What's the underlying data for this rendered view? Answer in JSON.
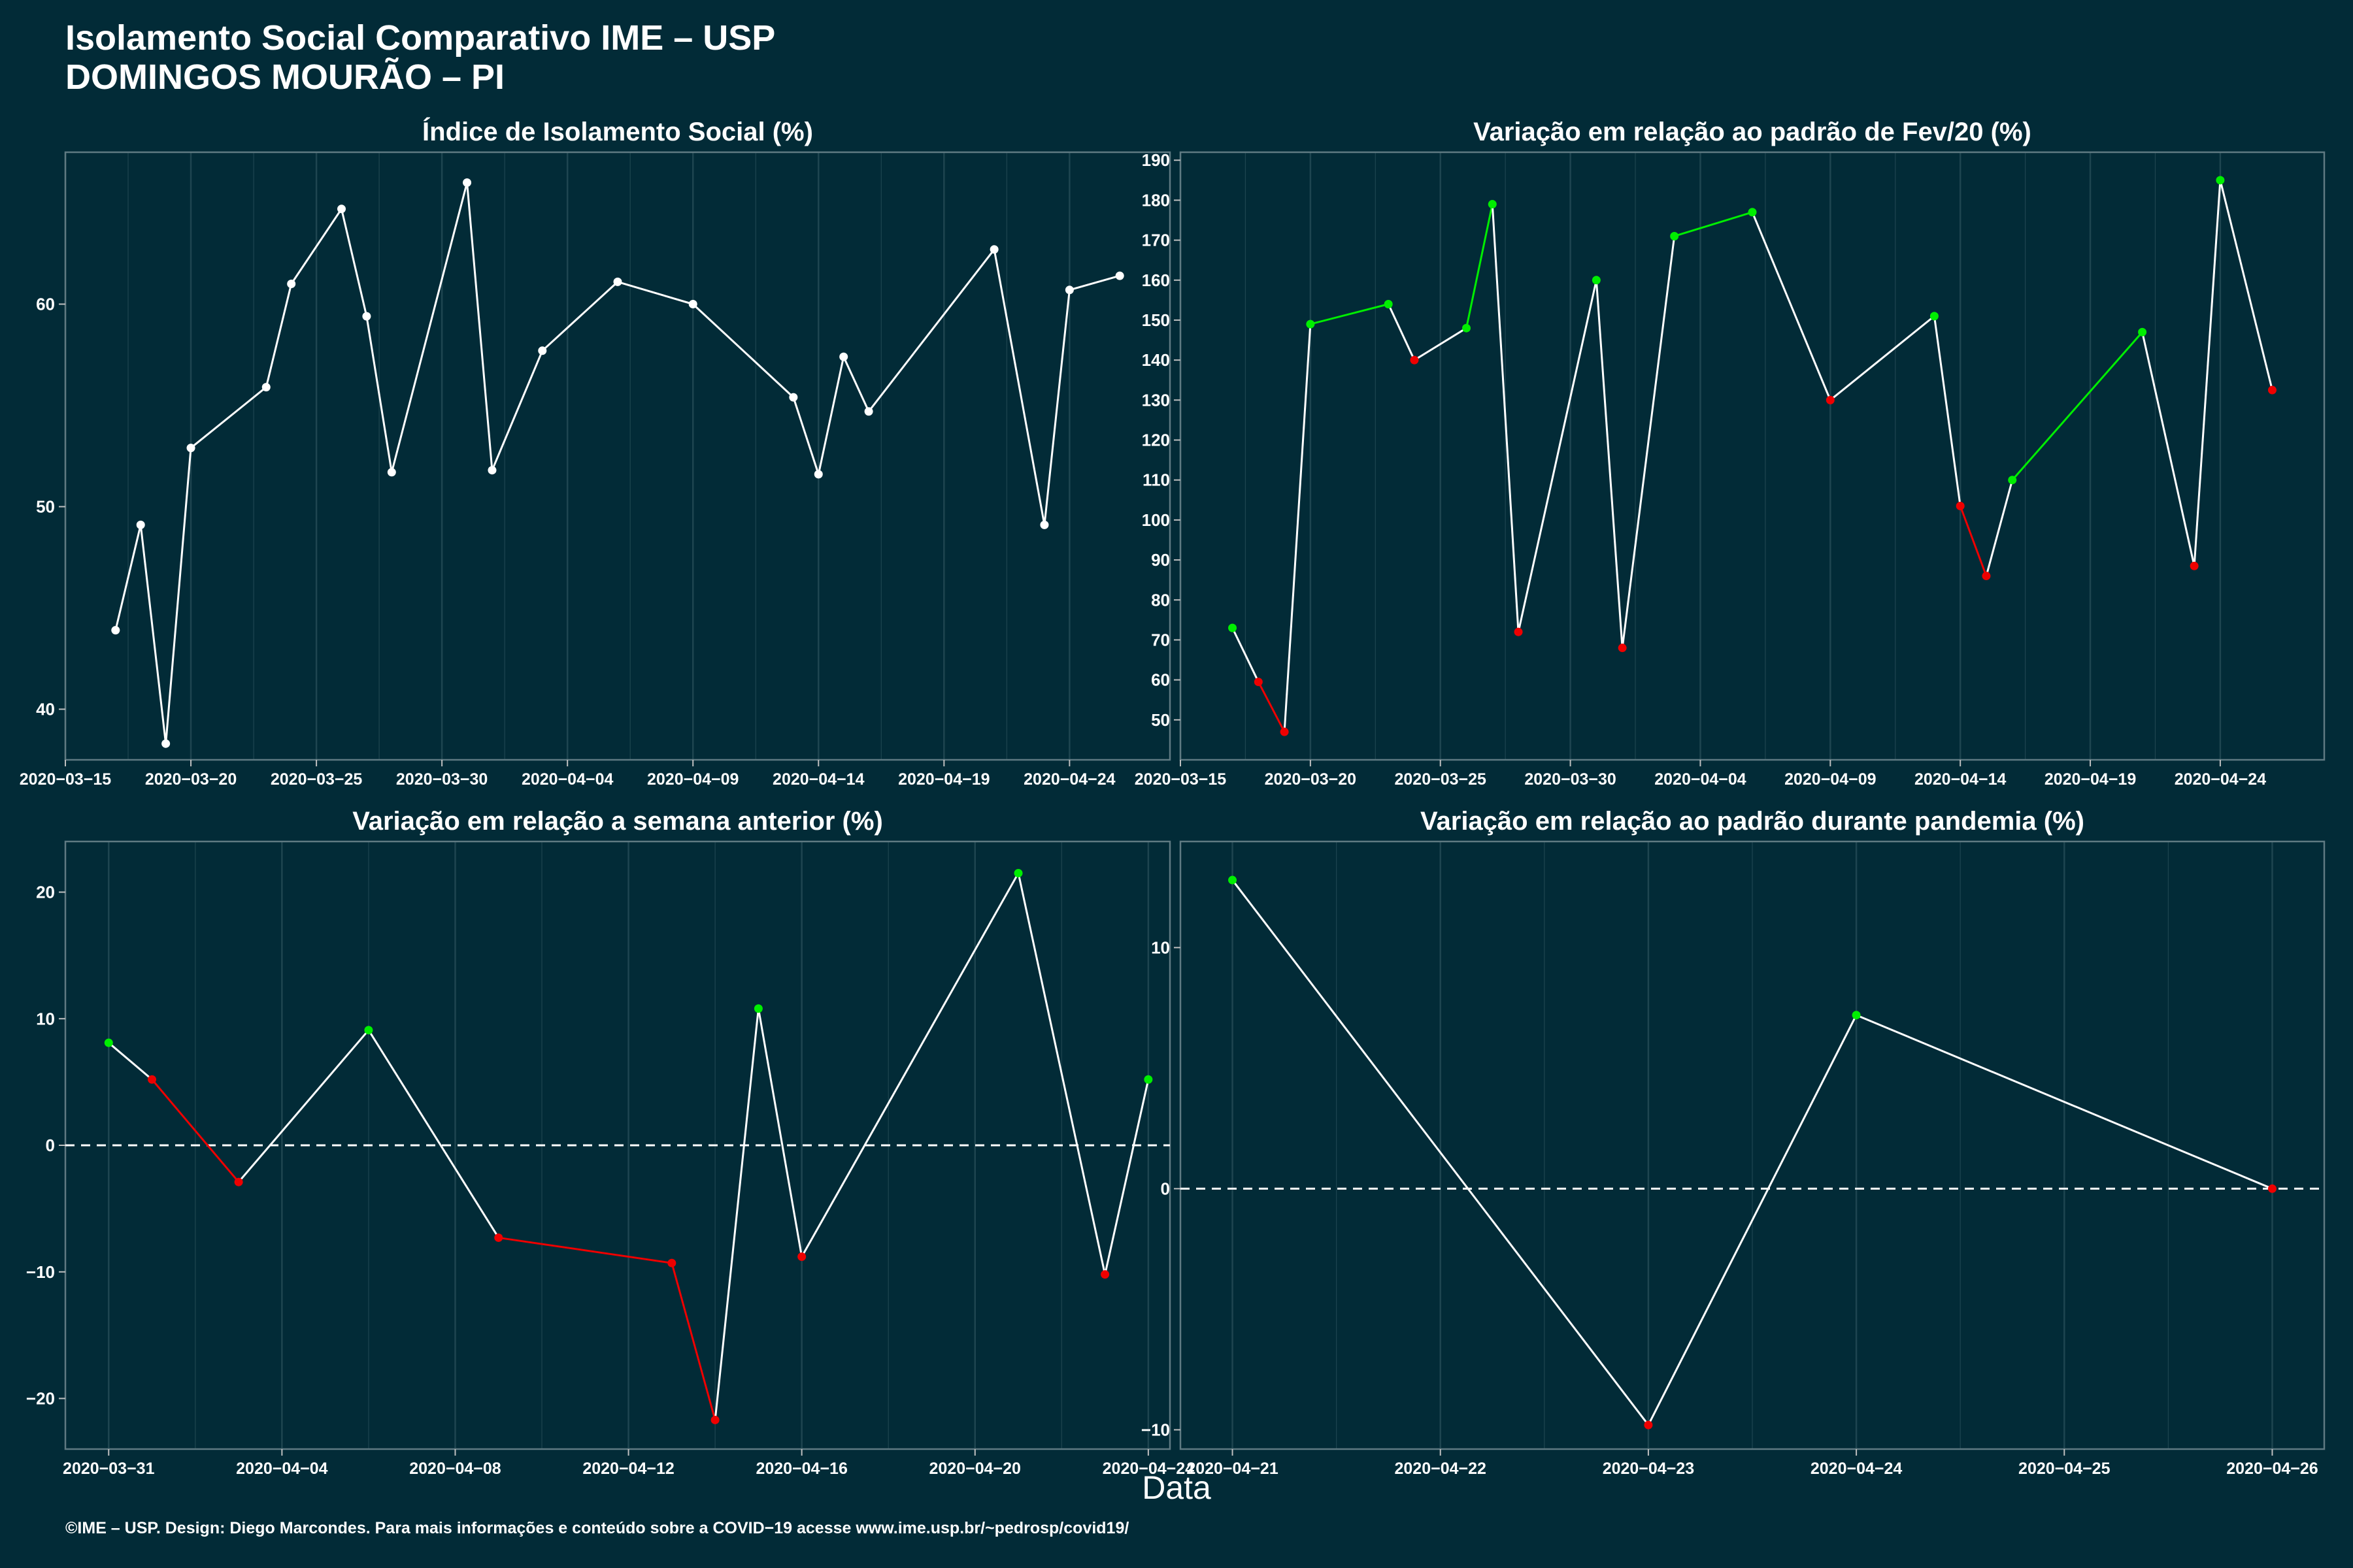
{
  "header": {
    "title_line1": "Isolamento Social Comparativo IME – USP",
    "title_line2": "DOMINGOS MOURÃO – PI"
  },
  "x_axis_title": "Data",
  "footer": "©IME – USP. Design: Diego Marcondes. Para mais informações e conteúdo sobre a COVID−19 acesse www.ime.usp.br/~pedrosp/covid19/",
  "colors": {
    "background": "#022b37",
    "line_default": "#ffffff",
    "increase": "#00ee00",
    "decrease": "#ee0000",
    "panel_border": "#5f7a82",
    "grid": "#1e4550"
  },
  "chart_data": [
    {
      "type": "line",
      "title": "Índice de Isolamento Social (%)",
      "xlim": [
        "2020-03-15",
        "2020-04-28"
      ],
      "ylim": [
        37.5,
        67.5
      ],
      "x_ticks": [
        "2020-03-15",
        "2020-03-20",
        "2020-03-25",
        "2020-03-30",
        "2020-04-04",
        "2020-04-09",
        "2020-04-14",
        "2020-04-19",
        "2020-04-24"
      ],
      "y_ticks": [
        40,
        50,
        60
      ],
      "colored": false,
      "zero_line": false,
      "x": [
        "2020-03-17",
        "2020-03-18",
        "2020-03-19",
        "2020-03-20",
        "2020-03-23",
        "2020-03-24",
        "2020-03-26",
        "2020-03-27",
        "2020-03-28",
        "2020-03-31",
        "2020-04-01",
        "2020-04-03",
        "2020-04-06",
        "2020-04-09",
        "2020-04-13",
        "2020-04-14",
        "2020-04-15",
        "2020-04-16",
        "2020-04-21",
        "2020-04-23",
        "2020-04-24",
        "2020-04-26"
      ],
      "y": [
        43.9,
        49.1,
        38.3,
        52.9,
        55.9,
        61.0,
        64.7,
        59.4,
        51.7,
        66.0,
        51.8,
        57.7,
        61.1,
        60.0,
        55.4,
        51.6,
        57.4,
        54.7,
        62.7,
        49.1,
        60.7,
        61.4
      ]
    },
    {
      "type": "line",
      "title": "Variação em relação ao padrão de Fev/20 (%)",
      "xlim": [
        "2020-03-15",
        "2020-04-28"
      ],
      "ylim": [
        40,
        192
      ],
      "x_ticks": [
        "2020-03-15",
        "2020-03-20",
        "2020-03-25",
        "2020-03-30",
        "2020-04-04",
        "2020-04-09",
        "2020-04-14",
        "2020-04-19",
        "2020-04-24"
      ],
      "y_ticks": [
        50,
        60,
        70,
        80,
        90,
        100,
        110,
        120,
        130,
        140,
        150,
        160,
        170,
        180,
        190
      ],
      "colored": true,
      "zero_line": false,
      "x": [
        "2020-03-17",
        "2020-03-18",
        "2020-03-19",
        "2020-03-20",
        "2020-03-23",
        "2020-03-24",
        "2020-03-26",
        "2020-03-27",
        "2020-03-28",
        "2020-03-31",
        "2020-04-01",
        "2020-04-03",
        "2020-04-06",
        "2020-04-09",
        "2020-04-13",
        "2020-04-14",
        "2020-04-15",
        "2020-04-16",
        "2020-04-21",
        "2020-04-23",
        "2020-04-24",
        "2020-04-26"
      ],
      "y": [
        73,
        59.5,
        47,
        149,
        154,
        140,
        148,
        179,
        72,
        160,
        68,
        171,
        177,
        130,
        151,
        103.5,
        86,
        110,
        147,
        88.5,
        185,
        132.5
      ]
    },
    {
      "type": "line",
      "title": "Variação em relação a semana anterior (%)",
      "xlim": [
        "2020-03-30",
        "2020-04-24.5"
      ],
      "ylim": [
        -24,
        24
      ],
      "x_ticks": [
        "2020-03-31",
        "2020-04-04",
        "2020-04-08",
        "2020-04-12",
        "2020-04-16",
        "2020-04-20",
        "2020-04-24"
      ],
      "y_ticks": [
        -20,
        -10,
        0,
        10,
        20
      ],
      "colored": true,
      "zero_line": true,
      "x": [
        "2020-03-31",
        "2020-04-01",
        "2020-04-03",
        "2020-04-06",
        "2020-04-09",
        "2020-04-13",
        "2020-04-14",
        "2020-04-15",
        "2020-04-16",
        "2020-04-21",
        "2020-04-23",
        "2020-04-24"
      ],
      "y": [
        8.1,
        5.2,
        -2.9,
        9.1,
        -7.3,
        -9.3,
        -21.7,
        10.8,
        -8.8,
        21.5,
        -10.2,
        5.2
      ]
    },
    {
      "type": "line",
      "title": "Variação em relação ao padrão durante pandemia (%)",
      "xlim": [
        "2020-04-20.75",
        "2020-04-26.25"
      ],
      "ylim": [
        -10.8,
        14.4
      ],
      "x_ticks": [
        "2020-04-21",
        "2020-04-22",
        "2020-04-23",
        "2020-04-24",
        "2020-04-25",
        "2020-04-26"
      ],
      "y_ticks": [
        -10,
        0,
        10
      ],
      "colored": true,
      "zero_line": true,
      "x": [
        "2020-04-21",
        "2020-04-23",
        "2020-04-24",
        "2020-04-26"
      ],
      "y": [
        12.8,
        -9.8,
        7.2,
        0.0
      ]
    }
  ]
}
